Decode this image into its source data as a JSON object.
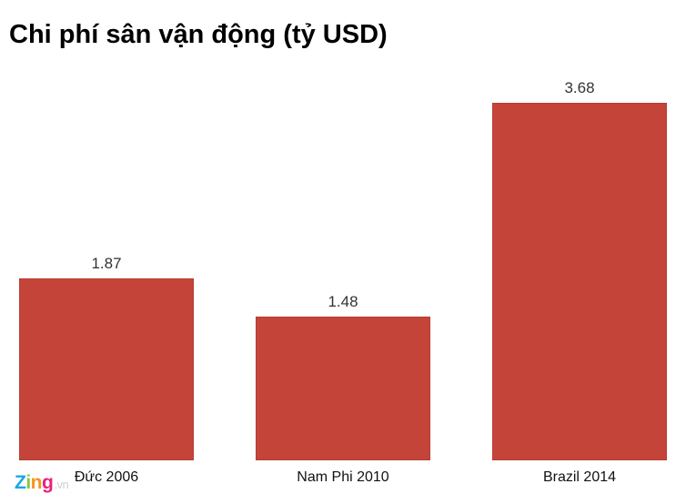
{
  "title": "Chi phí sân vận động (tỷ USD)",
  "logo": {
    "z": "Z",
    "i": "i",
    "n": "n",
    "g": "g",
    "suffix": ".vn"
  },
  "chart_data": {
    "type": "bar",
    "title": "Chi phí sân vận động (tỷ USD)",
    "categories": [
      "Đức 2006",
      "Nam Phi 2010",
      "Brazil 2014"
    ],
    "values": [
      1.87,
      1.48,
      3.68
    ],
    "value_labels": [
      "1.87",
      "1.48",
      "3.68"
    ],
    "xlabel": "",
    "ylabel": "",
    "ylim": [
      0,
      3.68
    ],
    "grid": false,
    "legend": null,
    "bar_color": "#c5443a"
  }
}
